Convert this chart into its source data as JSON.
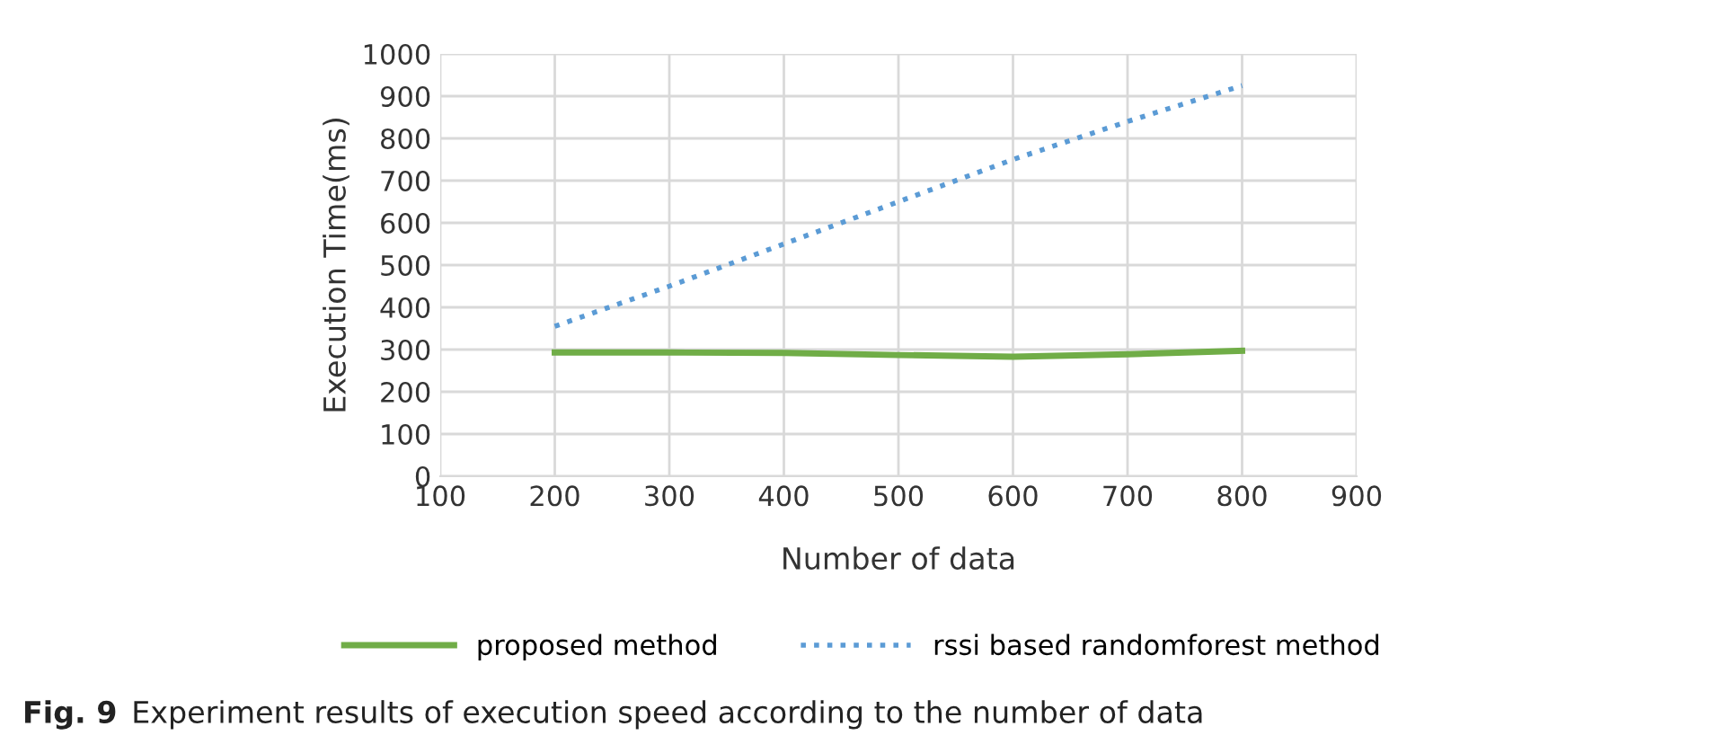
{
  "chart_data": {
    "type": "line",
    "xlabel": "Number of data",
    "ylabel": "Execution Time(ms)",
    "x": [
      200,
      300,
      400,
      500,
      600,
      700,
      800
    ],
    "series": [
      {
        "name": "proposed method",
        "color": "#70ad47",
        "line_style": "solid",
        "values": [
          293,
          293,
          292,
          287,
          283,
          289,
          297
        ]
      },
      {
        "name": "rssi based randomforest method",
        "color": "#5b9bd5",
        "line_style": "dotted",
        "values": [
          355,
          450,
          550,
          650,
          750,
          840,
          925
        ]
      }
    ],
    "xlim": [
      100,
      900
    ],
    "xticks": [
      100,
      200,
      300,
      400,
      500,
      600,
      700,
      800,
      900
    ],
    "ylim": [
      0,
      1000
    ],
    "yticks": [
      0,
      100,
      200,
      300,
      400,
      500,
      600,
      700,
      800,
      900,
      1000
    ],
    "grid": true,
    "legend": "bottom",
    "marker": "none",
    "annotations": [
      "Fig. 9",
      "Experiment results of execution speed according to the number of data"
    ]
  }
}
